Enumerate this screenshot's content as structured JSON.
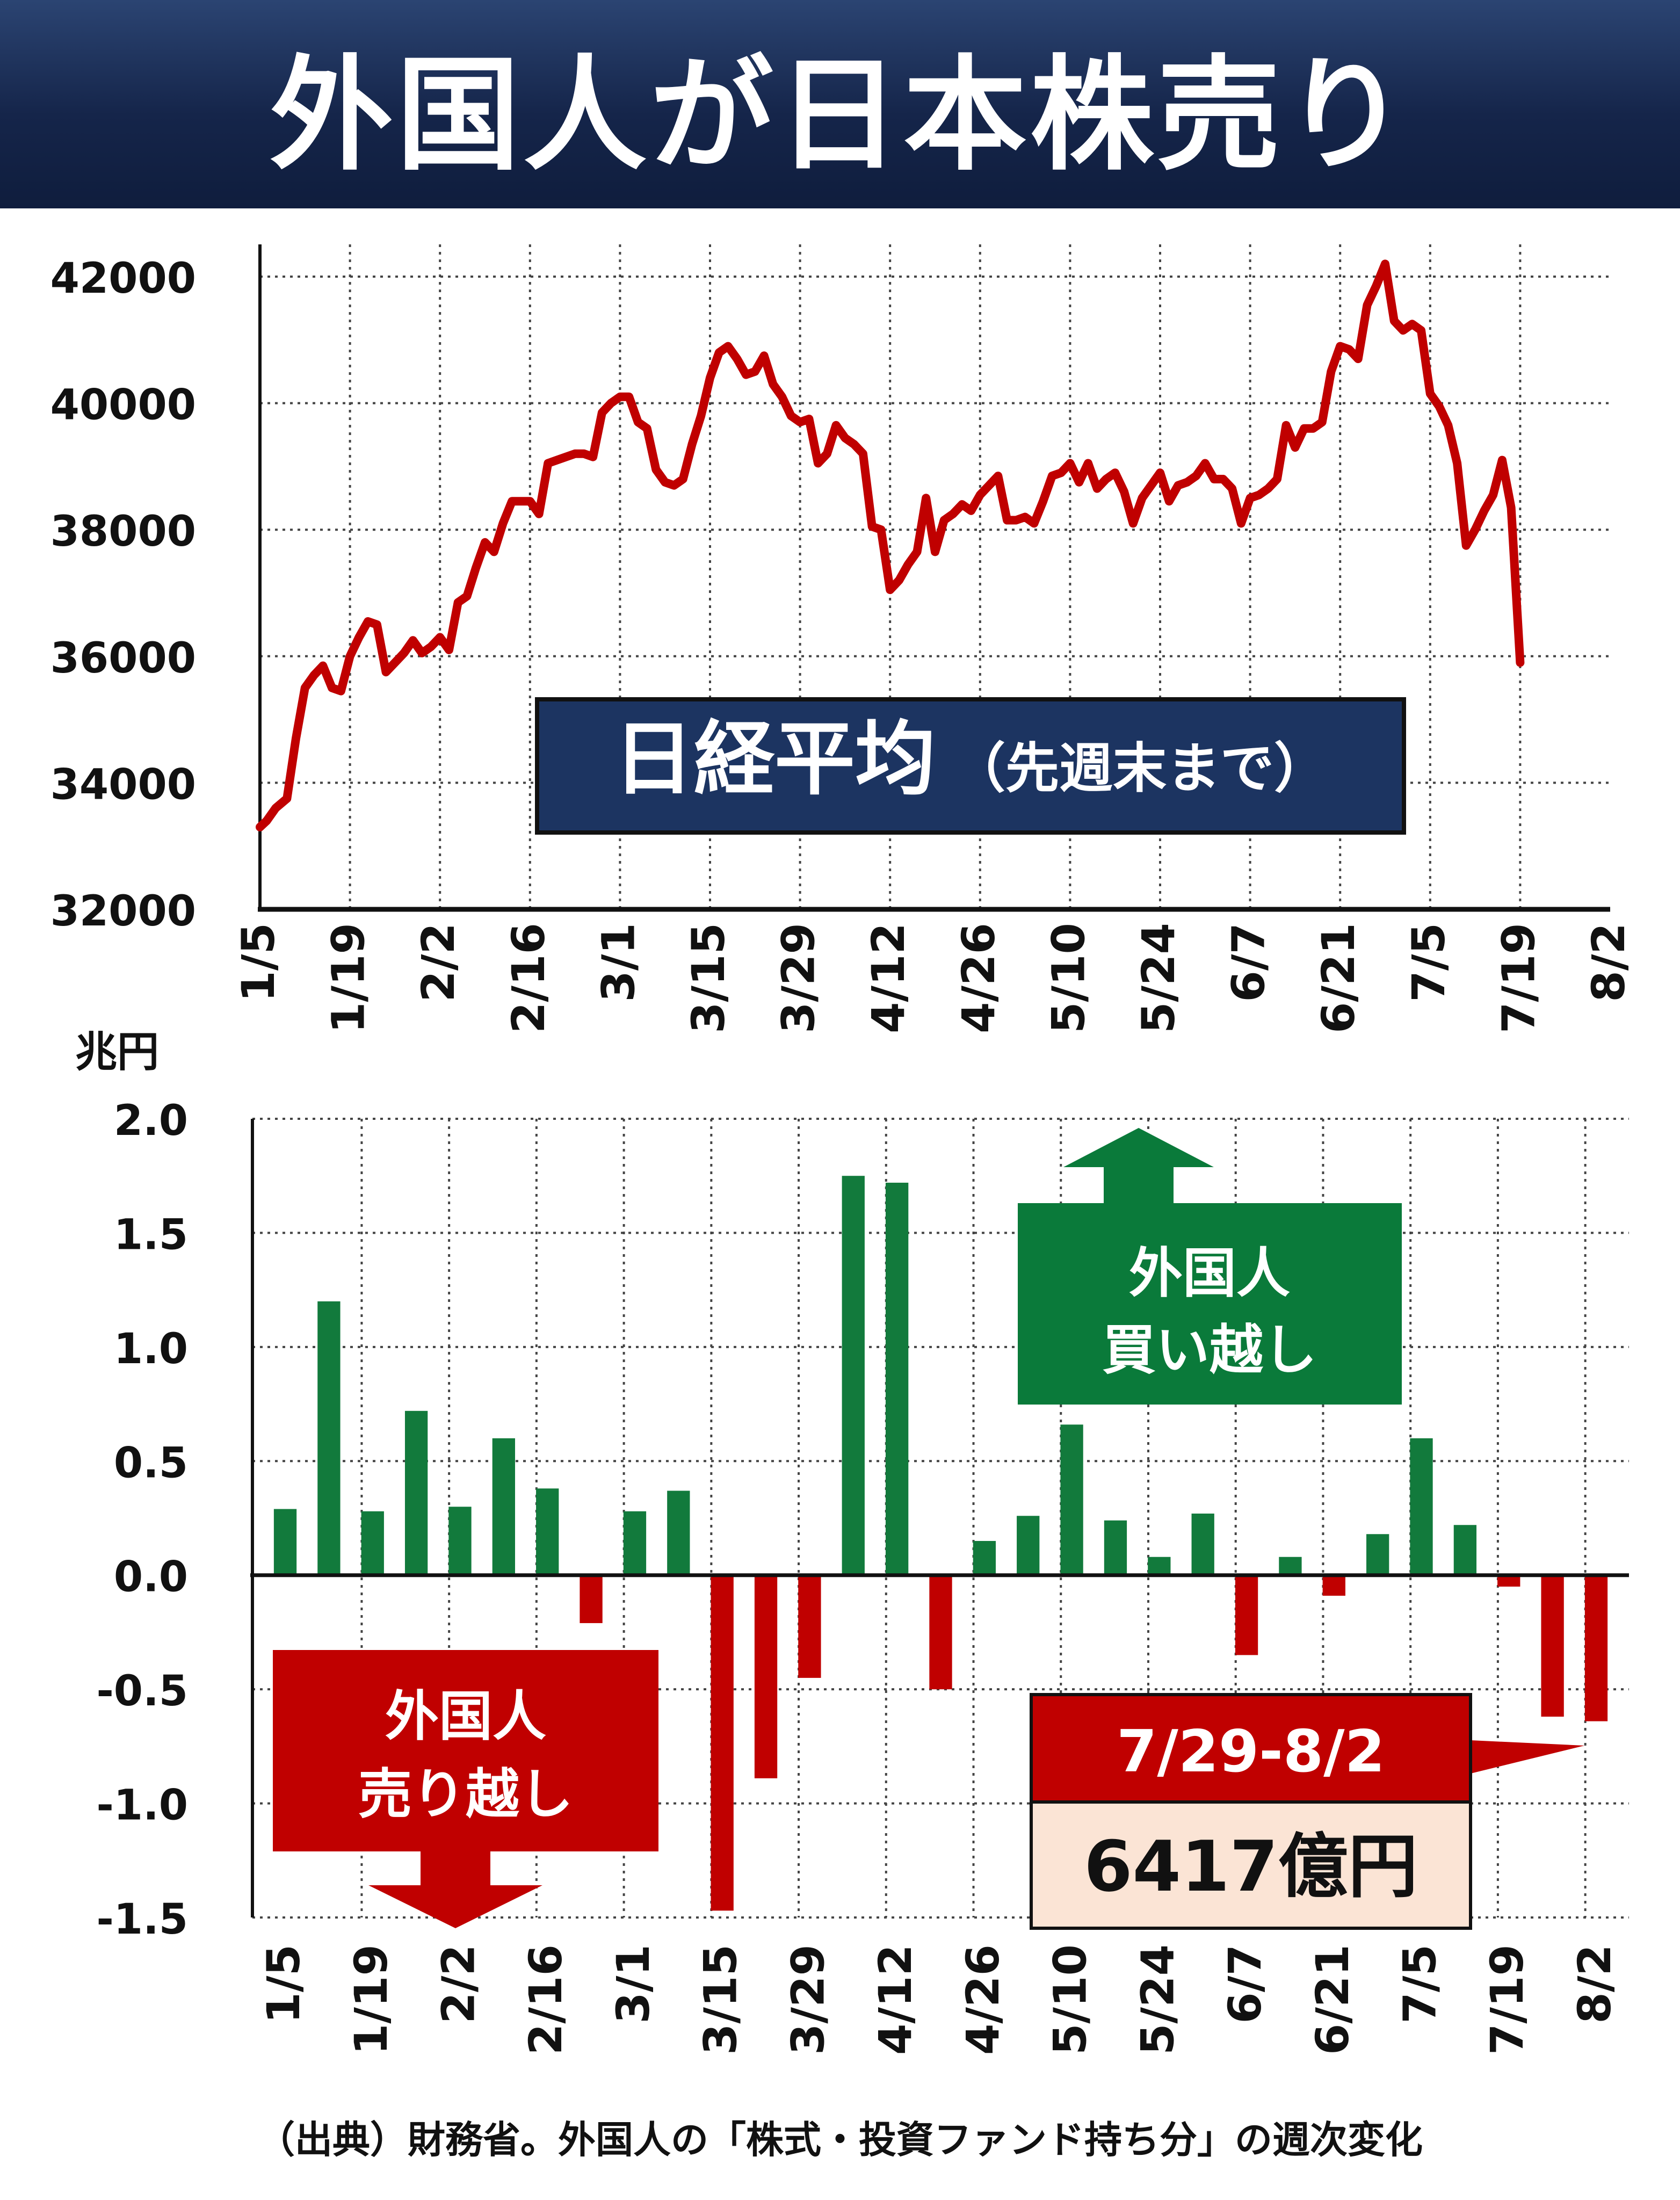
{
  "title": "外国人が日本株売り",
  "source_note": "（出典）財務省。外国人の「株式・投資ファンド持ち分」の週次変化",
  "colors": {
    "title_bg": "#1a2b52",
    "line": "#c00000",
    "buy_bar": "#127a3c",
    "sell_bar": "#c00000",
    "label_navy": "#1c3461",
    "buy_box": "#0a7a3a",
    "sell_box": "#c00000",
    "value_box": "#fbe4d5"
  },
  "chart_data": [
    {
      "type": "line",
      "name": "nikkei",
      "box_label": "日経平均",
      "box_sublabel": "（先週末まで）",
      "ylim": [
        32000,
        42000
      ],
      "yticks": [
        32000,
        34000,
        36000,
        38000,
        40000,
        42000
      ],
      "xlim": [
        0,
        30
      ],
      "xticks": [
        {
          "x": 0,
          "label": "1/5"
        },
        {
          "x": 2,
          "label": "1/19"
        },
        {
          "x": 4,
          "label": "2/2"
        },
        {
          "x": 6,
          "label": "2/16"
        },
        {
          "x": 8,
          "label": "3/1"
        },
        {
          "x": 10,
          "label": "3/15"
        },
        {
          "x": 12,
          "label": "3/29"
        },
        {
          "x": 14,
          "label": "4/12"
        },
        {
          "x": 16,
          "label": "4/26"
        },
        {
          "x": 18,
          "label": "5/10"
        },
        {
          "x": 20,
          "label": "5/24"
        },
        {
          "x": 22,
          "label": "6/7"
        },
        {
          "x": 24,
          "label": "6/21"
        },
        {
          "x": 26,
          "label": "7/5"
        },
        {
          "x": 28,
          "label": "7/19"
        },
        {
          "x": 30,
          "label": "8/2"
        }
      ],
      "grid": true,
      "points": [
        [
          0,
          33300
        ],
        [
          0.15,
          33400
        ],
        [
          0.35,
          33600
        ],
        [
          0.6,
          33750
        ],
        [
          0.8,
          34700
        ],
        [
          1.0,
          35500
        ],
        [
          1.2,
          35700
        ],
        [
          1.4,
          35850
        ],
        [
          1.6,
          35500
        ],
        [
          1.8,
          35450
        ],
        [
          2.0,
          36000
        ],
        [
          2.2,
          36300
        ],
        [
          2.4,
          36550
        ],
        [
          2.6,
          36500
        ],
        [
          2.8,
          35750
        ],
        [
          3.0,
          35900
        ],
        [
          3.2,
          36050
        ],
        [
          3.4,
          36250
        ],
        [
          3.6,
          36050
        ],
        [
          3.8,
          36150
        ],
        [
          4.0,
          36300
        ],
        [
          4.2,
          36100
        ],
        [
          4.4,
          36850
        ],
        [
          4.6,
          36950
        ],
        [
          4.8,
          37400
        ],
        [
          5.0,
          37800
        ],
        [
          5.2,
          37650
        ],
        [
          5.4,
          38100
        ],
        [
          5.6,
          38450
        ],
        [
          5.8,
          38450
        ],
        [
          6.0,
          38450
        ],
        [
          6.2,
          38250
        ],
        [
          6.4,
          39050
        ],
        [
          6.6,
          39100
        ],
        [
          6.8,
          39150
        ],
        [
          7.0,
          39200
        ],
        [
          7.2,
          39200
        ],
        [
          7.4,
          39150
        ],
        [
          7.6,
          39850
        ],
        [
          7.8,
          40000
        ],
        [
          8.0,
          40100
        ],
        [
          8.2,
          40100
        ],
        [
          8.4,
          39700
        ],
        [
          8.6,
          39600
        ],
        [
          8.8,
          38950
        ],
        [
          9.0,
          38750
        ],
        [
          9.2,
          38700
        ],
        [
          9.4,
          38800
        ],
        [
          9.6,
          39350
        ],
        [
          9.8,
          39800
        ],
        [
          10.0,
          40400
        ],
        [
          10.2,
          40800
        ],
        [
          10.4,
          40900
        ],
        [
          10.6,
          40700
        ],
        [
          10.8,
          40450
        ],
        [
          11.0,
          40500
        ],
        [
          11.2,
          40750
        ],
        [
          11.4,
          40300
        ],
        [
          11.6,
          40100
        ],
        [
          11.8,
          39800
        ],
        [
          12.0,
          39700
        ],
        [
          12.2,
          39750
        ],
        [
          12.4,
          39050
        ],
        [
          12.6,
          39200
        ],
        [
          12.8,
          39650
        ],
        [
          13.0,
          39450
        ],
        [
          13.2,
          39350
        ],
        [
          13.4,
          39200
        ],
        [
          13.6,
          38050
        ],
        [
          13.8,
          38000
        ],
        [
          14.0,
          37050
        ],
        [
          14.2,
          37200
        ],
        [
          14.4,
          37450
        ],
        [
          14.6,
          37650
        ],
        [
          14.8,
          38500
        ],
        [
          15.0,
          37650
        ],
        [
          15.2,
          38150
        ],
        [
          15.4,
          38250
        ],
        [
          15.6,
          38400
        ],
        [
          15.8,
          38300
        ],
        [
          16.0,
          38550
        ],
        [
          16.2,
          38700
        ],
        [
          16.4,
          38850
        ],
        [
          16.6,
          38150
        ],
        [
          16.8,
          38150
        ],
        [
          17.0,
          38200
        ],
        [
          17.2,
          38100
        ],
        [
          17.4,
          38450
        ],
        [
          17.6,
          38850
        ],
        [
          17.8,
          38900
        ],
        [
          18.0,
          39050
        ],
        [
          18.2,
          38750
        ],
        [
          18.4,
          39050
        ],
        [
          18.6,
          38650
        ],
        [
          18.8,
          38800
        ],
        [
          19.0,
          38900
        ],
        [
          19.2,
          38600
        ],
        [
          19.4,
          38100
        ],
        [
          19.6,
          38500
        ],
        [
          19.8,
          38700
        ],
        [
          20.0,
          38900
        ],
        [
          20.2,
          38450
        ],
        [
          20.4,
          38700
        ],
        [
          20.6,
          38750
        ],
        [
          20.8,
          38850
        ],
        [
          21.0,
          39050
        ],
        [
          21.2,
          38800
        ],
        [
          21.4,
          38800
        ],
        [
          21.6,
          38650
        ],
        [
          21.8,
          38100
        ],
        [
          22.0,
          38500
        ],
        [
          22.2,
          38550
        ],
        [
          22.4,
          38650
        ],
        [
          22.6,
          38800
        ],
        [
          22.8,
          39650
        ],
        [
          23.0,
          39300
        ],
        [
          23.2,
          39600
        ],
        [
          23.4,
          39600
        ],
        [
          23.6,
          39700
        ],
        [
          23.8,
          40500
        ],
        [
          24.0,
          40900
        ],
        [
          24.2,
          40850
        ],
        [
          24.4,
          40700
        ],
        [
          24.6,
          41550
        ],
        [
          24.8,
          41850
        ],
        [
          25.0,
          42200
        ],
        [
          25.2,
          41300
        ],
        [
          25.4,
          41150
        ],
        [
          25.6,
          41250
        ],
        [
          25.8,
          41150
        ],
        [
          26.0,
          40150
        ],
        [
          26.2,
          39950
        ],
        [
          26.4,
          39650
        ],
        [
          26.6,
          39050
        ],
        [
          26.8,
          37750
        ],
        [
          27.0,
          38000
        ],
        [
          27.2,
          38300
        ],
        [
          27.4,
          38550
        ],
        [
          27.6,
          39100
        ],
        [
          27.8,
          38350
        ],
        [
          28.0,
          35900
        ]
      ]
    },
    {
      "type": "bar",
      "name": "foreign_weekly",
      "unit_label": "兆円",
      "ylim": [
        -1.5,
        2.0
      ],
      "yticks": [
        "2.0",
        "1.5",
        "1.0",
        "0.5",
        "0.0",
        "-0.5",
        "-1.0",
        "-1.5"
      ],
      "ytick_values": [
        2.0,
        1.5,
        1.0,
        0.5,
        0.0,
        -0.5,
        -1.0,
        -1.5
      ],
      "categories": [
        "1/5",
        "1/12",
        "1/19",
        "1/26",
        "2/2",
        "2/9",
        "2/16",
        "2/23",
        "3/1",
        "3/8",
        "3/15",
        "3/22",
        "3/29",
        "4/5",
        "4/12",
        "4/19",
        "4/26",
        "5/3",
        "5/10",
        "5/17",
        "5/24",
        "5/31",
        "6/7",
        "6/14",
        "6/21",
        "6/28",
        "7/5",
        "7/12",
        "7/19",
        "7/26",
        "8/2"
      ],
      "tick_labels": [
        "1/5",
        "1/19",
        "2/2",
        "2/16",
        "3/1",
        "3/15",
        "3/29",
        "4/12",
        "4/26",
        "5/10",
        "5/24",
        "6/7",
        "6/21",
        "7/5",
        "7/19",
        "8/2"
      ],
      "values": [
        0.29,
        1.2,
        0.28,
        0.72,
        0.3,
        0.6,
        0.38,
        -0.21,
        0.28,
        0.37,
        -1.47,
        -0.89,
        -0.45,
        1.75,
        1.72,
        -0.5,
        0.15,
        0.26,
        0.66,
        0.24,
        0.08,
        0.27,
        -0.35,
        0.08,
        -0.09,
        0.18,
        0.6,
        0.22,
        -0.05,
        -0.62,
        -0.64
      ],
      "grid": true,
      "annotations": {
        "buy_label_1": "外国人",
        "buy_label_2": "買い越し",
        "sell_label_1": "外国人",
        "sell_label_2": "売り越し",
        "period_label": "7/29-8/2",
        "amount_label": "6417億円"
      }
    }
  ]
}
